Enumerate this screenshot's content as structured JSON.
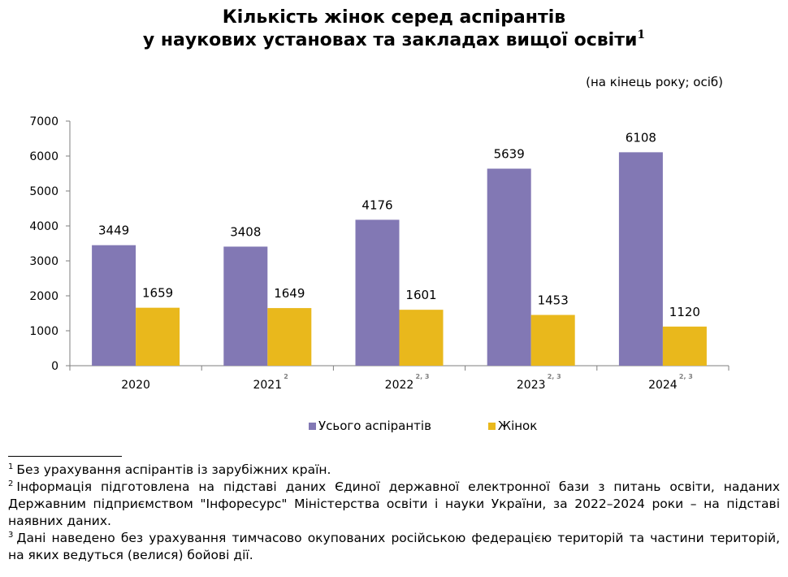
{
  "title": {
    "line1": "Кількість жінок серед аспірантів",
    "line2": "у наукових установах та закладах вищої освіти",
    "line2_sup": "1"
  },
  "unit_note": "(на кінець року; осіб)",
  "colors": {
    "total": "#8278b4",
    "women": "#e9b81c",
    "axis": "#7f7f7f"
  },
  "chart_data": {
    "type": "bar",
    "title": "Кількість жінок серед аспірантів у наукових установах та закладах вищої освіти",
    "categories": [
      "2020",
      "2021",
      "2022",
      "2023",
      "2024"
    ],
    "category_superscripts": [
      "",
      "2",
      "2, 3",
      "2, 3",
      "2, 3"
    ],
    "series": [
      {
        "name": "Усього аспірантів",
        "values": [
          3449,
          3408,
          4176,
          5639,
          6108
        ]
      },
      {
        "name": "Жінок",
        "values": [
          1659,
          1649,
          1601,
          1453,
          1120
        ]
      }
    ],
    "ylim": [
      0,
      7000
    ],
    "yticks": [
      0,
      1000,
      2000,
      3000,
      4000,
      5000,
      6000,
      7000
    ],
    "xlabel": "",
    "ylabel": "",
    "grid": false,
    "data_labels": true,
    "legend": "bottom"
  },
  "legend": {
    "total_label": "Усього аспірантів",
    "women_label": "Жінок"
  },
  "footnotes": [
    {
      "marker": "1",
      "text": "Без урахування аспірантів із зарубіжних країн."
    },
    {
      "marker": "2",
      "text": "Інформація підготовлена на підставі даних Єдиної державної електронної бази з питань освіти, наданих Державним підприємством \"Інфоресурс\" Міністерства освіти і науки України, за 2022–2024 роки – на підставі наявних даних."
    },
    {
      "marker": "3",
      "text": "Дані наведено без урахування тимчасово окупованих російською федерацією територій та частини територій, на яких ведуться (велися) бойові дії."
    }
  ]
}
